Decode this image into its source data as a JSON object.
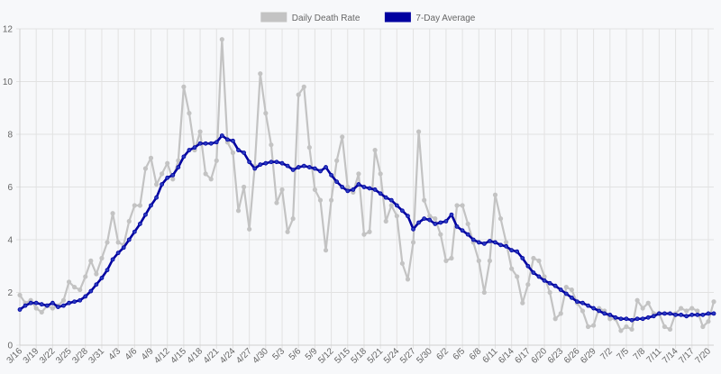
{
  "chart_data": {
    "type": "line",
    "categories": [
      "3/16",
      "3/17",
      "3/18",
      "3/19",
      "3/20",
      "3/21",
      "3/22",
      "3/23",
      "3/24",
      "3/25",
      "3/26",
      "3/27",
      "3/28",
      "3/29",
      "3/30",
      "3/31",
      "4/1",
      "4/2",
      "4/3",
      "4/4",
      "4/5",
      "4/6",
      "4/7",
      "4/8",
      "4/9",
      "4/10",
      "4/11",
      "4/12",
      "4/13",
      "4/14",
      "4/15",
      "4/16",
      "4/17",
      "4/18",
      "4/19",
      "4/20",
      "4/21",
      "4/22",
      "4/23",
      "4/24",
      "4/25",
      "4/26",
      "4/27",
      "4/28",
      "4/29",
      "4/30",
      "5/1",
      "5/2",
      "5/3",
      "5/4",
      "5/5",
      "5/6",
      "5/7",
      "5/8",
      "5/9",
      "5/10",
      "5/11",
      "5/12",
      "5/13",
      "5/14",
      "5/15",
      "5/16",
      "5/17",
      "5/18",
      "5/19",
      "5/20",
      "5/21",
      "5/22",
      "5/23",
      "5/24",
      "5/25",
      "5/26",
      "5/27",
      "5/28",
      "5/29",
      "5/30",
      "5/31",
      "6/1",
      "6/2",
      "6/3",
      "6/4",
      "6/5",
      "6/6",
      "6/7",
      "6/8",
      "6/9",
      "6/10",
      "6/11",
      "6/12",
      "6/13",
      "6/14",
      "6/15",
      "6/16",
      "6/17",
      "6/18",
      "6/19",
      "6/20",
      "6/21",
      "6/22",
      "6/23",
      "6/24",
      "6/25",
      "6/26",
      "6/27",
      "6/28",
      "6/29",
      "6/30",
      "7/1",
      "7/2",
      "7/3",
      "7/4",
      "7/5",
      "7/6",
      "7/7",
      "7/8",
      "7/9",
      "7/10",
      "7/11",
      "7/12",
      "7/13",
      "7/14",
      "7/15",
      "7/16",
      "7/17",
      "7/18",
      "7/19",
      "7/20",
      "7/21"
    ],
    "tick_labels": [
      "3/16",
      "3/19",
      "3/22",
      "3/25",
      "3/28",
      "3/31",
      "4/3",
      "4/6",
      "4/9",
      "4/12",
      "4/15",
      "4/18",
      "4/21",
      "4/24",
      "4/27",
      "4/30",
      "5/3",
      "5/6",
      "5/9",
      "5/12",
      "5/15",
      "5/18",
      "5/21",
      "5/24",
      "5/27",
      "5/30",
      "6/2",
      "6/5",
      "6/8",
      "6/11",
      "6/14",
      "6/17",
      "6/20",
      "6/23",
      "6/26",
      "6/29",
      "7/2",
      "7/5",
      "7/8",
      "7/11",
      "7/14",
      "7/17",
      "7/20"
    ],
    "ylim": [
      0,
      12
    ],
    "yticks": [
      0,
      2,
      4,
      6,
      8,
      10,
      12
    ],
    "grid": true,
    "legend_position": "top",
    "series": [
      {
        "name": "Daily Death Rate",
        "color": "#c3c3c3",
        "values": [
          1.9,
          1.6,
          1.7,
          1.4,
          1.25,
          1.5,
          1.4,
          1.5,
          1.7,
          2.4,
          2.2,
          2.1,
          2.6,
          3.2,
          2.7,
          3.3,
          3.9,
          5.0,
          3.9,
          3.8,
          4.7,
          5.3,
          5.3,
          6.7,
          7.1,
          6.1,
          6.5,
          6.9,
          6.3,
          7.0,
          9.8,
          8.8,
          7.4,
          8.1,
          6.5,
          6.3,
          7.0,
          11.6,
          7.7,
          7.3,
          5.1,
          6.0,
          4.4,
          6.8,
          10.3,
          8.8,
          7.6,
          5.4,
          5.9,
          4.3,
          4.8,
          9.5,
          9.8,
          7.5,
          5.9,
          5.5,
          3.6,
          5.5,
          7.0,
          7.9,
          6.0,
          5.8,
          6.5,
          4.2,
          4.3,
          7.4,
          6.5,
          4.7,
          5.3,
          4.9,
          3.1,
          2.5,
          3.9,
          8.1,
          5.5,
          4.9,
          4.8,
          4.2,
          3.2,
          3.3,
          5.3,
          5.3,
          4.6,
          3.9,
          3.2,
          2.0,
          3.2,
          5.7,
          4.8,
          3.9,
          2.9,
          2.6,
          1.6,
          2.3,
          3.3,
          3.2,
          2.6,
          2.0,
          1.0,
          1.2,
          2.2,
          2.1,
          1.6,
          1.3,
          0.7,
          0.75,
          1.4,
          1.3,
          1.0,
          1.0,
          0.55,
          0.7,
          0.6,
          1.7,
          1.4,
          1.6,
          1.2,
          1.2,
          0.7,
          0.6,
          1.2,
          1.4,
          1.3,
          1.4,
          1.3,
          0.7,
          0.9,
          1.65
        ]
      },
      {
        "name": "7-Day Average",
        "color": "#0000a0",
        "values": [
          1.35,
          1.5,
          1.6,
          1.6,
          1.55,
          1.5,
          1.6,
          1.45,
          1.5,
          1.6,
          1.65,
          1.7,
          1.85,
          2.05,
          2.3,
          2.55,
          2.85,
          3.25,
          3.5,
          3.7,
          4.0,
          4.3,
          4.6,
          4.95,
          5.3,
          5.6,
          6.1,
          6.35,
          6.45,
          6.75,
          7.15,
          7.4,
          7.5,
          7.65,
          7.65,
          7.65,
          7.7,
          7.95,
          7.8,
          7.75,
          7.4,
          7.3,
          6.95,
          6.7,
          6.85,
          6.9,
          6.95,
          6.95,
          6.9,
          6.8,
          6.65,
          6.75,
          6.8,
          6.75,
          6.7,
          6.6,
          6.75,
          6.45,
          6.2,
          6.0,
          5.85,
          5.9,
          6.1,
          6.0,
          5.95,
          5.9,
          5.75,
          5.6,
          5.5,
          5.3,
          5.1,
          4.9,
          4.4,
          4.65,
          4.8,
          4.75,
          4.6,
          4.65,
          4.7,
          4.95,
          4.5,
          4.35,
          4.2,
          4.0,
          3.9,
          3.85,
          3.95,
          3.9,
          3.8,
          3.75,
          3.6,
          3.55,
          3.3,
          3.0,
          2.75,
          2.6,
          2.45,
          2.35,
          2.25,
          2.1,
          1.95,
          1.8,
          1.65,
          1.6,
          1.5,
          1.4,
          1.3,
          1.2,
          1.15,
          1.05,
          1.0,
          1.0,
          0.95,
          1.0,
          1.0,
          1.05,
          1.1,
          1.2,
          1.2,
          1.2,
          1.15,
          1.15,
          1.1,
          1.15,
          1.15,
          1.15,
          1.2,
          1.2
        ]
      }
    ]
  }
}
